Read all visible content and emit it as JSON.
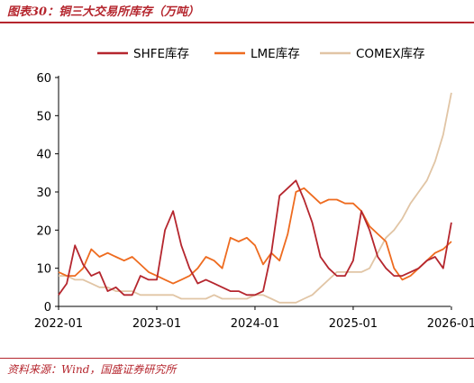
{
  "header": {
    "title": "图表30：铜三大交易所库存（万吨）"
  },
  "footer": {
    "source": "资料来源：Wind，国盛证券研究所"
  },
  "chart_data": {
    "type": "line",
    "title": "图表30：铜三大交易所库存（万吨）",
    "xlabel": "",
    "ylabel": "",
    "x_ticks": [
      "2022-01",
      "2023-01",
      "2024-01",
      "2025-01",
      "2026-01"
    ],
    "y_ticks": [
      0,
      10,
      20,
      30,
      40,
      50,
      60
    ],
    "ylim": [
      0,
      60
    ],
    "xlim": [
      "2022-01",
      "2026-02"
    ],
    "grid": false,
    "legend": "top",
    "series": [
      {
        "name": "SHFE库存",
        "color": "#b5262e",
        "width": 1.8,
        "x": [
          "2022-01",
          "2022-02",
          "2022-03",
          "2022-04",
          "2022-05",
          "2022-06",
          "2022-07",
          "2022-08",
          "2022-09",
          "2022-10",
          "2022-11",
          "2022-12",
          "2023-01",
          "2023-02",
          "2023-03",
          "2023-04",
          "2023-05",
          "2023-06",
          "2023-07",
          "2023-08",
          "2023-09",
          "2023-10",
          "2023-11",
          "2023-12",
          "2024-01",
          "2024-02",
          "2024-03",
          "2024-04",
          "2024-05",
          "2024-06",
          "2024-07",
          "2024-08",
          "2024-09",
          "2024-10",
          "2024-11",
          "2024-12",
          "2025-01",
          "2025-02",
          "2025-03",
          "2025-04",
          "2025-05",
          "2025-06",
          "2025-07",
          "2025-08",
          "2025-09",
          "2025-10",
          "2025-11",
          "2025-12",
          "2026-01"
        ],
        "values": [
          3,
          6,
          16,
          11,
          8,
          9,
          4,
          5,
          3,
          3,
          8,
          7,
          7,
          20,
          25,
          16,
          10,
          6,
          7,
          6,
          5,
          4,
          4,
          3,
          3,
          4,
          14,
          29,
          31,
          33,
          28,
          22,
          13,
          10,
          8,
          8,
          12,
          25,
          20,
          13,
          10,
          8,
          8,
          9,
          10,
          12,
          13,
          10,
          22
        ]
      },
      {
        "name": "LME库存",
        "color": "#ee6b1f",
        "width": 1.8,
        "x": [
          "2022-01",
          "2022-02",
          "2022-03",
          "2022-04",
          "2022-05",
          "2022-06",
          "2022-07",
          "2022-08",
          "2022-09",
          "2022-10",
          "2022-11",
          "2022-12",
          "2023-01",
          "2023-02",
          "2023-03",
          "2023-04",
          "2023-05",
          "2023-06",
          "2023-07",
          "2023-08",
          "2023-09",
          "2023-10",
          "2023-11",
          "2023-12",
          "2024-01",
          "2024-02",
          "2024-03",
          "2024-04",
          "2024-05",
          "2024-06",
          "2024-07",
          "2024-08",
          "2024-09",
          "2024-10",
          "2024-11",
          "2024-12",
          "2025-01",
          "2025-02",
          "2025-03",
          "2025-04",
          "2025-05",
          "2025-06",
          "2025-07",
          "2025-08",
          "2025-09",
          "2025-10",
          "2025-11",
          "2025-12",
          "2026-01"
        ],
        "values": [
          9,
          8,
          8,
          10,
          15,
          13,
          14,
          13,
          12,
          13,
          11,
          9,
          8,
          7,
          6,
          7,
          8,
          10,
          13,
          12,
          10,
          18,
          17,
          18,
          16,
          11,
          14,
          12,
          19,
          30,
          31,
          29,
          27,
          28,
          28,
          27,
          27,
          25,
          21,
          19,
          17,
          10,
          7,
          8,
          10,
          12,
          14,
          15,
          17
        ]
      },
      {
        "name": "COMEX库存",
        "color": "#e1c5a5",
        "width": 1.8,
        "x": [
          "2022-01",
          "2022-02",
          "2022-03",
          "2022-04",
          "2022-05",
          "2022-06",
          "2022-07",
          "2022-08",
          "2022-09",
          "2022-10",
          "2022-11",
          "2022-12",
          "2023-01",
          "2023-02",
          "2023-03",
          "2023-04",
          "2023-05",
          "2023-06",
          "2023-07",
          "2023-08",
          "2023-09",
          "2023-10",
          "2023-11",
          "2023-12",
          "2024-01",
          "2024-02",
          "2024-03",
          "2024-04",
          "2024-05",
          "2024-06",
          "2024-07",
          "2024-08",
          "2024-09",
          "2024-10",
          "2024-11",
          "2024-12",
          "2025-01",
          "2025-02",
          "2025-03",
          "2025-04",
          "2025-05",
          "2025-06",
          "2025-07",
          "2025-08",
          "2025-09",
          "2025-10",
          "2025-11",
          "2025-12",
          "2026-01"
        ],
        "values": [
          8,
          8,
          7,
          7,
          6,
          5,
          5,
          4,
          4,
          4,
          3,
          3,
          3,
          3,
          3,
          2,
          2,
          2,
          2,
          3,
          2,
          2,
          2,
          2,
          3,
          3,
          2,
          1,
          1,
          1,
          2,
          3,
          5,
          7,
          9,
          9,
          9,
          9,
          10,
          14,
          18,
          20,
          23,
          27,
          30,
          33,
          38,
          45,
          56
        ]
      }
    ]
  }
}
